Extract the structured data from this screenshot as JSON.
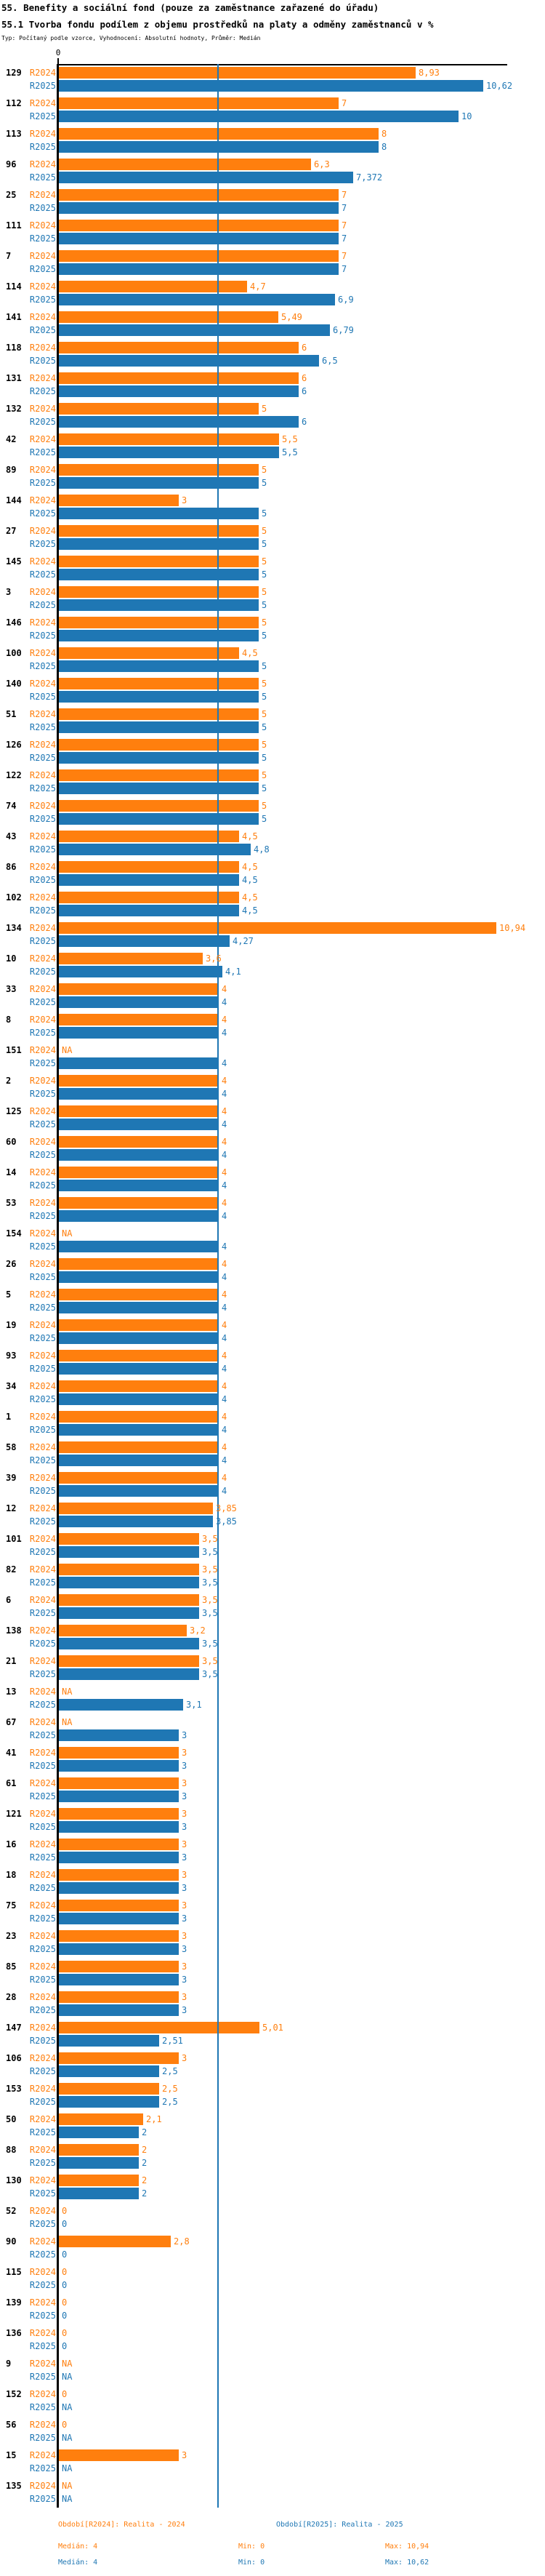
{
  "header": {
    "title": "55. Benefity a sociální fond (pouze za zaměstnance zařazené do úřadu)",
    "subtitle": "55.1 Tvorba fondu podílem z objemu prostředků na platy a odměny zaměstnanců v %",
    "meta": "Typ: Počítaný podle vzorce, Vyhodnocení: Absolutní hodnoty, Průměr: Medián"
  },
  "axis": {
    "zero_tick_label": "0",
    "median_value": 4
  },
  "colors": {
    "r2024": "#ff7f0e",
    "r2025": "#1f77b4",
    "axis": "#000000",
    "median_line": "#1f77b4"
  },
  "chart_data": {
    "type": "bar",
    "orientation": "horizontal",
    "title": "55.1 Tvorba fondu podílem z objemu prostředků na platy a odměny zaměstnanců v %",
    "xlim": [
      0,
      11.2
    ],
    "grid": false,
    "median_reference_line": 4,
    "series_names": [
      "R2024",
      "R2025"
    ],
    "na_label": "NA",
    "rows": [
      {
        "id": "129",
        "r2024": "8,93",
        "r2025": "10,62"
      },
      {
        "id": "112",
        "r2024": "7",
        "r2025": "10"
      },
      {
        "id": "113",
        "r2024": "8",
        "r2025": "8"
      },
      {
        "id": "96",
        "r2024": "6,3",
        "r2025": "7,372"
      },
      {
        "id": "25",
        "r2024": "7",
        "r2025": "7"
      },
      {
        "id": "111",
        "r2024": "7",
        "r2025": "7"
      },
      {
        "id": "7",
        "r2024": "7",
        "r2025": "7"
      },
      {
        "id": "114",
        "r2024": "4,7",
        "r2025": "6,9"
      },
      {
        "id": "141",
        "r2024": "5,49",
        "r2025": "6,79"
      },
      {
        "id": "118",
        "r2024": "6",
        "r2025": "6,5"
      },
      {
        "id": "131",
        "r2024": "6",
        "r2025": "6"
      },
      {
        "id": "132",
        "r2024": "5",
        "r2025": "6"
      },
      {
        "id": "42",
        "r2024": "5,5",
        "r2025": "5,5"
      },
      {
        "id": "89",
        "r2024": "5",
        "r2025": "5"
      },
      {
        "id": "144",
        "r2024": "3",
        "r2025": "5"
      },
      {
        "id": "27",
        "r2024": "5",
        "r2025": "5"
      },
      {
        "id": "145",
        "r2024": "5",
        "r2025": "5"
      },
      {
        "id": "3",
        "r2024": "5",
        "r2025": "5"
      },
      {
        "id": "146",
        "r2024": "5",
        "r2025": "5"
      },
      {
        "id": "100",
        "r2024": "4,5",
        "r2025": "5"
      },
      {
        "id": "140",
        "r2024": "5",
        "r2025": "5"
      },
      {
        "id": "51",
        "r2024": "5",
        "r2025": "5"
      },
      {
        "id": "126",
        "r2024": "5",
        "r2025": "5"
      },
      {
        "id": "122",
        "r2024": "5",
        "r2025": "5"
      },
      {
        "id": "74",
        "r2024": "5",
        "r2025": "5"
      },
      {
        "id": "43",
        "r2024": "4,5",
        "r2025": "4,8"
      },
      {
        "id": "86",
        "r2024": "4,5",
        "r2025": "4,5"
      },
      {
        "id": "102",
        "r2024": "4,5",
        "r2025": "4,5"
      },
      {
        "id": "134",
        "r2024": "10,94",
        "r2025": "4,27"
      },
      {
        "id": "10",
        "r2024": "3,6",
        "r2025": "4,1"
      },
      {
        "id": "33",
        "r2024": "4",
        "r2025": "4"
      },
      {
        "id": "8",
        "r2024": "4",
        "r2025": "4"
      },
      {
        "id": "151",
        "r2024": "NA",
        "r2025": "4"
      },
      {
        "id": "2",
        "r2024": "4",
        "r2025": "4"
      },
      {
        "id": "125",
        "r2024": "4",
        "r2025": "4"
      },
      {
        "id": "60",
        "r2024": "4",
        "r2025": "4"
      },
      {
        "id": "14",
        "r2024": "4",
        "r2025": "4"
      },
      {
        "id": "53",
        "r2024": "4",
        "r2025": "4"
      },
      {
        "id": "154",
        "r2024": "NA",
        "r2025": "4"
      },
      {
        "id": "26",
        "r2024": "4",
        "r2025": "4"
      },
      {
        "id": "5",
        "r2024": "4",
        "r2025": "4"
      },
      {
        "id": "19",
        "r2024": "4",
        "r2025": "4"
      },
      {
        "id": "93",
        "r2024": "4",
        "r2025": "4"
      },
      {
        "id": "34",
        "r2024": "4",
        "r2025": "4"
      },
      {
        "id": "1",
        "r2024": "4",
        "r2025": "4"
      },
      {
        "id": "58",
        "r2024": "4",
        "r2025": "4"
      },
      {
        "id": "39",
        "r2024": "4",
        "r2025": "4"
      },
      {
        "id": "12",
        "r2024": "3,85",
        "r2025": "3,85"
      },
      {
        "id": "101",
        "r2024": "3,5",
        "r2025": "3,5"
      },
      {
        "id": "82",
        "r2024": "3,5",
        "r2025": "3,5"
      },
      {
        "id": "6",
        "r2024": "3,5",
        "r2025": "3,5"
      },
      {
        "id": "138",
        "r2024": "3,2",
        "r2025": "3,5"
      },
      {
        "id": "21",
        "r2024": "3,5",
        "r2025": "3,5"
      },
      {
        "id": "13",
        "r2024": "NA",
        "r2025": "3,1"
      },
      {
        "id": "67",
        "r2024": "NA",
        "r2025": "3"
      },
      {
        "id": "41",
        "r2024": "3",
        "r2025": "3"
      },
      {
        "id": "61",
        "r2024": "3",
        "r2025": "3"
      },
      {
        "id": "121",
        "r2024": "3",
        "r2025": "3"
      },
      {
        "id": "16",
        "r2024": "3",
        "r2025": "3"
      },
      {
        "id": "18",
        "r2024": "3",
        "r2025": "3"
      },
      {
        "id": "75",
        "r2024": "3",
        "r2025": "3"
      },
      {
        "id": "23",
        "r2024": "3",
        "r2025": "3"
      },
      {
        "id": "85",
        "r2024": "3",
        "r2025": "3"
      },
      {
        "id": "28",
        "r2024": "3",
        "r2025": "3"
      },
      {
        "id": "147",
        "r2024": "5,01",
        "r2025": "2,51"
      },
      {
        "id": "106",
        "r2024": "3",
        "r2025": "2,5"
      },
      {
        "id": "153",
        "r2024": "2,5",
        "r2025": "2,5"
      },
      {
        "id": "50",
        "r2024": "2,1",
        "r2025": "2"
      },
      {
        "id": "88",
        "r2024": "2",
        "r2025": "2"
      },
      {
        "id": "130",
        "r2024": "2",
        "r2025": "2"
      },
      {
        "id": "52",
        "r2024": "0",
        "r2025": "0"
      },
      {
        "id": "90",
        "r2024": "2,8",
        "r2025": "0"
      },
      {
        "id": "115",
        "r2024": "0",
        "r2025": "0"
      },
      {
        "id": "139",
        "r2024": "0",
        "r2025": "0"
      },
      {
        "id": "136",
        "r2024": "0",
        "r2025": "0"
      },
      {
        "id": "9",
        "r2024": "NA",
        "r2025": "NA"
      },
      {
        "id": "152",
        "r2024": "0",
        "r2025": "NA"
      },
      {
        "id": "56",
        "r2024": "0",
        "r2025": "NA"
      },
      {
        "id": "15",
        "r2024": "3",
        "r2025": "NA"
      },
      {
        "id": "135",
        "r2024": "NA",
        "r2025": "NA"
      }
    ]
  },
  "footer": {
    "legend_r2024": "Období[R2024]: Realita - 2024",
    "legend_r2025": "Období[R2025]: Realita - 2025",
    "r2024_median": "Medián: 4",
    "r2024_min": "Min: 0",
    "r2024_max": "Max: 10,94",
    "r2025_median": "Medián: 4",
    "r2025_min": "Min: 0",
    "r2025_max": "Max: 10,62"
  }
}
